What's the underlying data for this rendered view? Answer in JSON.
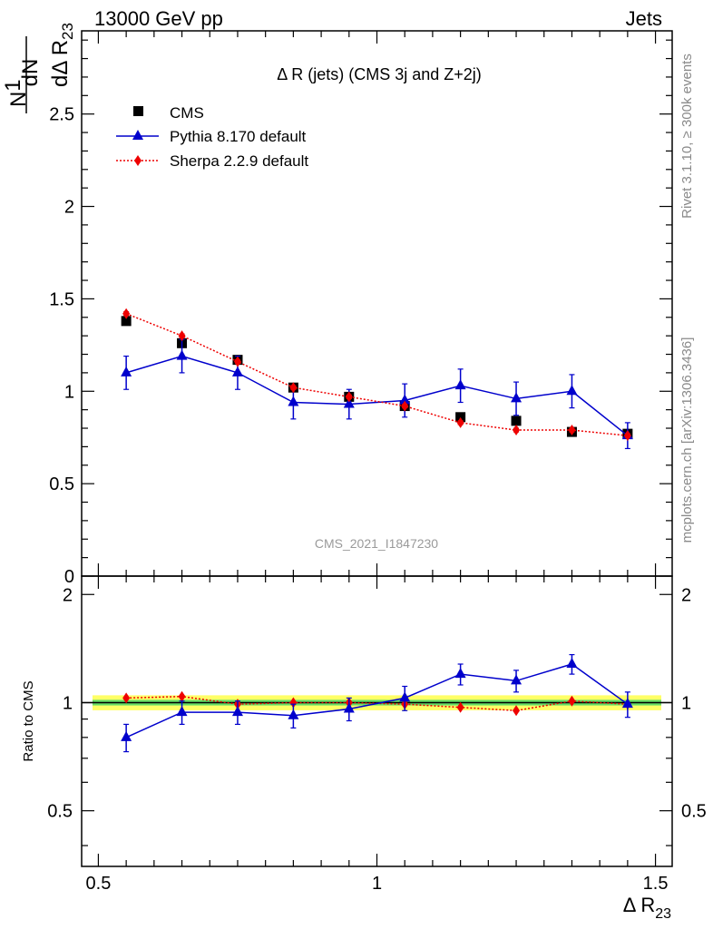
{
  "header": {
    "left": "13000 GeV pp",
    "right": "Jets"
  },
  "side_labels": {
    "rivet": "Rivet 3.1.10, ≥ 300k events",
    "mcplots": "mcplots.cern.ch [arXiv:1306.3436]"
  },
  "watermark": "CMS_2021_I1847230",
  "colors": {
    "cms": "#000000",
    "pythia": "#0000cc",
    "sherpa": "#ee0000",
    "band_inner": "#66dd66",
    "band_outer": "#ffff66"
  },
  "chart_data": [
    {
      "type": "scatter",
      "title": "Δ R (jets) (CMS 3j and Z+2j)",
      "ylabel_num": "dN",
      "ylabel_den": "dΔ R",
      "ylabel_sub": "23",
      "xlim": [
        0.47,
        1.53
      ],
      "ylim": [
        0,
        2.95
      ],
      "yticks": [
        "0",
        "0.5",
        "1",
        "1.5",
        "2",
        "2.5"
      ],
      "x": [
        0.55,
        0.65,
        0.75,
        0.85,
        0.95,
        1.05,
        1.15,
        1.25,
        1.35,
        1.45
      ],
      "series": [
        {
          "name": "CMS",
          "values": [
            1.38,
            1.26,
            1.17,
            1.02,
            0.97,
            0.92,
            0.86,
            0.84,
            0.78,
            0.77
          ],
          "errors": [
            0.01,
            0.01,
            0.01,
            0.01,
            0.01,
            0.01,
            0.01,
            0.01,
            0.01,
            0.01
          ]
        },
        {
          "name": "Pythia 8.170 default",
          "values": [
            1.1,
            1.19,
            1.1,
            0.94,
            0.93,
            0.95,
            1.03,
            0.96,
            1.0,
            0.76
          ],
          "errors": [
            0.09,
            0.09,
            0.09,
            0.09,
            0.08,
            0.09,
            0.09,
            0.09,
            0.09,
            0.07
          ]
        },
        {
          "name": "Sherpa 2.2.9 default",
          "values": [
            1.42,
            1.3,
            1.16,
            1.02,
            0.97,
            0.92,
            0.83,
            0.79,
            0.79,
            0.76
          ],
          "errors": [
            0.01,
            0.01,
            0.01,
            0.01,
            0.01,
            0.01,
            0.01,
            0.01,
            0.01,
            0.01
          ]
        }
      ],
      "legend_position": "top-left"
    },
    {
      "type": "scatter",
      "ylabel": "Ratio to CMS",
      "xlabel": "Δ R",
      "xlabel_sub": "23",
      "xlim": [
        0.47,
        1.53
      ],
      "ylim": [
        0.35,
        2.25
      ],
      "yticks": [
        "0.5",
        "1",
        "2"
      ],
      "xticks": [
        "0.5",
        "1",
        "1.5"
      ],
      "x": [
        0.55,
        0.65,
        0.75,
        0.85,
        0.95,
        1.05,
        1.15,
        1.25,
        1.35,
        1.45
      ],
      "series": [
        {
          "name": "Pythia 8.170 default",
          "values": [
            0.8,
            0.94,
            0.94,
            0.92,
            0.96,
            1.03,
            1.2,
            1.15,
            1.28,
            0.99
          ],
          "errors": [
            0.07,
            0.07,
            0.07,
            0.07,
            0.07,
            0.08,
            0.08,
            0.08,
            0.08,
            0.08
          ]
        },
        {
          "name": "Sherpa 2.2.9 default",
          "values": [
            1.03,
            1.04,
            0.99,
            1.0,
            1.0,
            0.99,
            0.97,
            0.95,
            1.01,
            0.99
          ],
          "errors": [
            0,
            0,
            0,
            0,
            0,
            0,
            0,
            0,
            0,
            0
          ]
        }
      ],
      "band_halfwidth": 0.03
    }
  ]
}
